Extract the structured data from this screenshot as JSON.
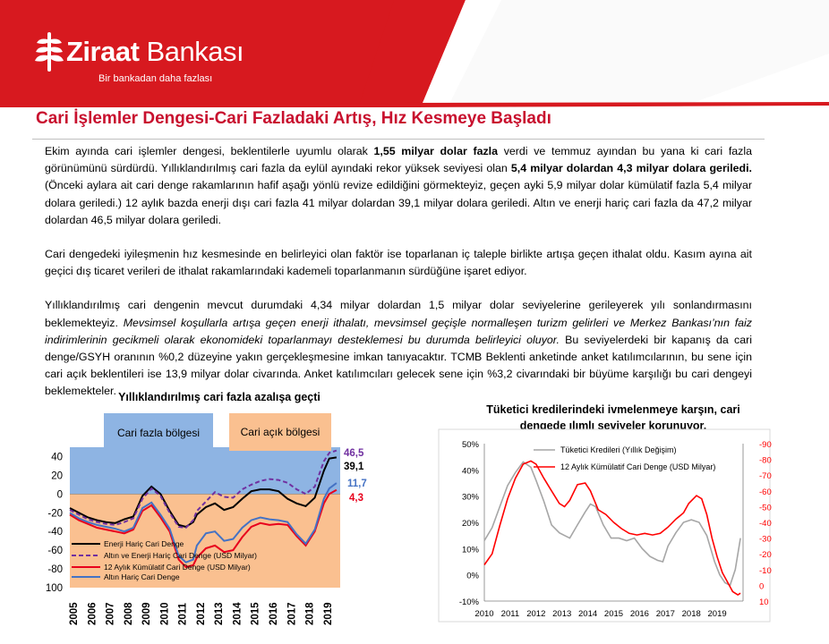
{
  "header": {
    "logo_name": "Ziraat",
    "logo_name2": "Bankası",
    "logo_tagline": "Bir bankadan daha fazlası",
    "accent": "#d7191f"
  },
  "title": "Cari İşlemler Dengesi-Cari Fazladaki Artış, Hız Kesmeye Başladı",
  "paragraphs": {
    "p1a": "Ekim ayında cari işlemler dengesi, beklentilerle uyumlu olarak ",
    "p1b": "1,55 milyar dolar fazla",
    "p1c": " verdi ve temmuz ayından bu yana ki cari fazla görünümünü sürdürdü. Yıllıklandırılmış cari fazla da eylül ayındaki rekor yüksek seviyesi olan ",
    "p1d": "5,4 milyar dolardan 4,3 milyar dolara geriledi.",
    "p1e": " (Önceki aylara ait cari denge rakamlarının hafif aşağı yönlü revize edildiğini görmekteyiz, geçen ayki 5,9 milyar dolar kümülatif fazla 5,4 milyar dolara geriledi.) 12 aylık bazda enerji dışı cari fazla 41 milyar dolardan 39,1 milyar dolara geriledi. Altın ve enerji hariç cari fazla da 47,2  milyar dolardan 46,5 milyar dolara geriledi.",
    "p2": "Cari dengedeki iyileşmenin hız kesmesinde en belirleyici olan faktör ise toparlanan iç taleple birlikte artışa geçen ithalat oldu. Kasım ayına ait geçici dış ticaret verileri de ithalat rakamlarındaki kademeli toparlanmanın sürdüğüne işaret ediyor.",
    "p3a": "Yıllıklandırılmış cari dengenin mevcut durumdaki 4,34 milyar dolardan 1,5 milyar dolar seviyelerine gerileyerek yılı sonlandırmasını beklemekteyiz. ",
    "p3b": "Mevsimsel koşullarla artışa geçen enerji ithalatı, mevsimsel geçişle normalleşen turizm gelirleri ve Merkez Bankası’nın faiz indirimlerinin gecikmeli olarak ekonomideki toparlanmayı desteklemesi bu durumda belirleyici oluyor.",
    "p3c": " Bu seviyelerdeki bir kapanış da cari denge/GSYH oranının %0,2 düzeyine yakın gerçekleşmesine imkan tanıyacaktır. TCMB Beklenti anketinde anket katılımcılarının, bu sene için cari açık beklentileri ise 13,9 milyar dolar civarında. Anket katılımcıları gelecek sene için %3,2 civarındaki bir büyüme karşılığı bu cari dengeyi beklemekteler."
  },
  "chart_data": [
    {
      "type": "line",
      "title": "Yıllıklandırılmış cari fazla azalışa geçti",
      "regions": {
        "surplus": "Cari fazla bölgesi",
        "deficit": "Cari açık bölgesi"
      },
      "x_ticks": [
        "2005",
        "2006",
        "2007",
        "2008",
        "2009",
        "2010",
        "2011",
        "2012",
        "2013",
        "2014",
        "2015",
        "2016",
        "2017",
        "2018",
        "2019"
      ],
      "xlim": [
        2005,
        2019.9
      ],
      "y_ticks": [
        "40",
        "20",
        "0",
        "-20",
        "-40",
        "-60",
        "-80",
        "100"
      ],
      "ylim": [
        -100,
        50
      ],
      "end_labels": [
        "46,5",
        "39,1",
        "11,7",
        "4,3"
      ],
      "series": [
        {
          "name": "Enerji Hariç Cari Denge",
          "color": "#000000",
          "points": [
            [
              2005,
              -15
            ],
            [
              2005.5,
              -20
            ],
            [
              2006,
              -25
            ],
            [
              2006.5,
              -28
            ],
            [
              2007,
              -30
            ],
            [
              2007.5,
              -31
            ],
            [
              2008,
              -27
            ],
            [
              2008.5,
              -24
            ],
            [
              2009,
              -2
            ],
            [
              2009.5,
              8
            ],
            [
              2010,
              0
            ],
            [
              2010.5,
              -18
            ],
            [
              2011,
              -33
            ],
            [
              2011.4,
              -35
            ],
            [
              2011.8,
              -30
            ],
            [
              2012,
              -22
            ],
            [
              2012.5,
              -14
            ],
            [
              2013,
              -10
            ],
            [
              2013.5,
              -17
            ],
            [
              2014,
              -14
            ],
            [
              2014.5,
              -5
            ],
            [
              2015,
              3
            ],
            [
              2015.5,
              5
            ],
            [
              2016,
              5
            ],
            [
              2016.5,
              3
            ],
            [
              2017,
              -5
            ],
            [
              2017.5,
              -10
            ],
            [
              2018,
              -13
            ],
            [
              2018.5,
              -4
            ],
            [
              2019,
              25
            ],
            [
              2019.3,
              38
            ],
            [
              2019.7,
              39.1
            ]
          ]
        },
        {
          "name": "Altın ve Enerji Hariç Cari Denge (USD Milyar)",
          "color": "#7030a0",
          "dashed": true,
          "points": [
            [
              2005,
              -17
            ],
            [
              2005.5,
              -22
            ],
            [
              2006,
              -27
            ],
            [
              2006.5,
              -30
            ],
            [
              2007,
              -32
            ],
            [
              2007.5,
              -33
            ],
            [
              2008,
              -30
            ],
            [
              2008.5,
              -26
            ],
            [
              2009,
              -5
            ],
            [
              2009.5,
              6
            ],
            [
              2010,
              -2
            ],
            [
              2010.5,
              -20
            ],
            [
              2011,
              -35
            ],
            [
              2011.4,
              -36
            ],
            [
              2011.8,
              -28
            ],
            [
              2012,
              -18
            ],
            [
              2012.5,
              -8
            ],
            [
              2013,
              2
            ],
            [
              2013.5,
              -3
            ],
            [
              2014,
              -4
            ],
            [
              2014.5,
              5
            ],
            [
              2015,
              10
            ],
            [
              2015.5,
              14
            ],
            [
              2016,
              16
            ],
            [
              2016.5,
              15
            ],
            [
              2017,
              12
            ],
            [
              2017.5,
              5
            ],
            [
              2018,
              0
            ],
            [
              2018.5,
              8
            ],
            [
              2019,
              35
            ],
            [
              2019.3,
              44
            ],
            [
              2019.7,
              46.5
            ]
          ]
        },
        {
          "name": "12 Aylık Kümülatif Cari Denge (USD Milyar)",
          "color": "#e8001c",
          "points": [
            [
              2005,
              -22
            ],
            [
              2005.5,
              -28
            ],
            [
              2006,
              -32
            ],
            [
              2006.5,
              -36
            ],
            [
              2007,
              -38
            ],
            [
              2007.5,
              -40
            ],
            [
              2008,
              -42
            ],
            [
              2008.5,
              -38
            ],
            [
              2009,
              -18
            ],
            [
              2009.5,
              -12
            ],
            [
              2010,
              -25
            ],
            [
              2010.5,
              -40
            ],
            [
              2011,
              -70
            ],
            [
              2011.4,
              -78
            ],
            [
              2011.8,
              -76
            ],
            [
              2012,
              -68
            ],
            [
              2012.5,
              -58
            ],
            [
              2013,
              -55
            ],
            [
              2013.5,
              -62
            ],
            [
              2014,
              -60
            ],
            [
              2014.5,
              -46
            ],
            [
              2015,
              -35
            ],
            [
              2015.5,
              -31
            ],
            [
              2016,
              -33
            ],
            [
              2016.5,
              -32
            ],
            [
              2017,
              -33
            ],
            [
              2017.5,
              -45
            ],
            [
              2018,
              -55
            ],
            [
              2018.5,
              -40
            ],
            [
              2019,
              -10
            ],
            [
              2019.3,
              0
            ],
            [
              2019.7,
              4.3
            ]
          ]
        },
        {
          "name": "Altın Hariç Cari Denge",
          "color": "#4472c4",
          "points": [
            [
              2005,
              -20
            ],
            [
              2005.5,
              -26
            ],
            [
              2006,
              -30
            ],
            [
              2006.5,
              -33
            ],
            [
              2007,
              -35
            ],
            [
              2007.5,
              -37
            ],
            [
              2008,
              -40
            ],
            [
              2008.5,
              -36
            ],
            [
              2009,
              -15
            ],
            [
              2009.5,
              -9
            ],
            [
              2010,
              -22
            ],
            [
              2010.5,
              -37
            ],
            [
              2011,
              -66
            ],
            [
              2011.4,
              -73
            ],
            [
              2011.8,
              -70
            ],
            [
              2012,
              -55
            ],
            [
              2012.5,
              -42
            ],
            [
              2013,
              -40
            ],
            [
              2013.5,
              -50
            ],
            [
              2014,
              -48
            ],
            [
              2014.5,
              -36
            ],
            [
              2015,
              -28
            ],
            [
              2015.5,
              -25
            ],
            [
              2016,
              -27
            ],
            [
              2016.5,
              -28
            ],
            [
              2017,
              -30
            ],
            [
              2017.5,
              -43
            ],
            [
              2018,
              -53
            ],
            [
              2018.5,
              -38
            ],
            [
              2019,
              -5
            ],
            [
              2019.3,
              6
            ],
            [
              2019.7,
              11.7
            ]
          ]
        }
      ]
    },
    {
      "type": "line",
      "title": "Tüketici kredilerindeki ivmelenmeye karşın, cari dengede ılımlı seviyeler korunuyor.",
      "x_ticks": [
        "2010",
        "2011",
        "2012",
        "2013",
        "2014",
        "2015",
        "2016",
        "2017",
        "2018",
        "2019"
      ],
      "xlim": [
        2010,
        2020
      ],
      "y_left_ticks": [
        "50%",
        "40%",
        "30%",
        "20%",
        "10%",
        "0%",
        "-10%"
      ],
      "ylim_left": [
        -10,
        50
      ],
      "y_right_ticks": [
        "-90",
        "-80",
        "-70",
        "-60",
        "-50",
        "-40",
        "-30",
        "-20",
        "-10",
        "0",
        "10"
      ],
      "ylim_right": [
        10,
        -90
      ],
      "series": [
        {
          "name": "Tüketici Kredileri (Yıllık Değişim)",
          "color": "#a6a6a6",
          "axis": "left",
          "points": [
            [
              2010,
              13
            ],
            [
              2010.3,
              18
            ],
            [
              2010.6,
              26
            ],
            [
              2010.9,
              34
            ],
            [
              2011.2,
              39
            ],
            [
              2011.5,
              43
            ],
            [
              2011.8,
              41
            ],
            [
              2012,
              36
            ],
            [
              2012.3,
              28
            ],
            [
              2012.6,
              19
            ],
            [
              2012.9,
              16
            ],
            [
              2013.1,
              15
            ],
            [
              2013.3,
              14
            ],
            [
              2013.6,
              19
            ],
            [
              2013.9,
              24
            ],
            [
              2014.1,
              27
            ],
            [
              2014.3,
              26
            ],
            [
              2014.6,
              19
            ],
            [
              2014.9,
              14
            ],
            [
              2015.2,
              14
            ],
            [
              2015.5,
              13
            ],
            [
              2015.8,
              14
            ],
            [
              2016.1,
              10
            ],
            [
              2016.4,
              7
            ],
            [
              2016.7,
              5.5
            ],
            [
              2016.9,
              5
            ],
            [
              2017.1,
              11
            ],
            [
              2017.4,
              16
            ],
            [
              2017.7,
              20
            ],
            [
              2018,
              21
            ],
            [
              2018.3,
              20
            ],
            [
              2018.6,
              15
            ],
            [
              2018.9,
              5
            ],
            [
              2019.1,
              0
            ],
            [
              2019.3,
              -3
            ],
            [
              2019.5,
              -4
            ],
            [
              2019.7,
              2
            ],
            [
              2019.9,
              14
            ]
          ]
        },
        {
          "name": "12 Aylık Kümülatif Cari Denge (USD Milyar)",
          "color": "#ff0000",
          "axis": "right",
          "points": [
            [
              2010,
              -13
            ],
            [
              2010.3,
              -20
            ],
            [
              2010.6,
              -38
            ],
            [
              2010.9,
              -55
            ],
            [
              2011.2,
              -68
            ],
            [
              2011.5,
              -77
            ],
            [
              2011.8,
              -79
            ],
            [
              2012,
              -77
            ],
            [
              2012.3,
              -68
            ],
            [
              2012.6,
              -60
            ],
            [
              2012.9,
              -52
            ],
            [
              2013.1,
              -50
            ],
            [
              2013.3,
              -54
            ],
            [
              2013.6,
              -64
            ],
            [
              2013.9,
              -65
            ],
            [
              2014.1,
              -60
            ],
            [
              2014.4,
              -48
            ],
            [
              2014.7,
              -45
            ],
            [
              2015,
              -40
            ],
            [
              2015.3,
              -36
            ],
            [
              2015.6,
              -33
            ],
            [
              2015.9,
              -32
            ],
            [
              2016.2,
              -33
            ],
            [
              2016.5,
              -32
            ],
            [
              2016.8,
              -33
            ],
            [
              2017.1,
              -37
            ],
            [
              2017.4,
              -42
            ],
            [
              2017.7,
              -46
            ],
            [
              2017.9,
              -52
            ],
            [
              2018.2,
              -57
            ],
            [
              2018.4,
              -55
            ],
            [
              2018.6,
              -45
            ],
            [
              2018.8,
              -30
            ],
            [
              2019,
              -18
            ],
            [
              2019.2,
              -8
            ],
            [
              2019.4,
              -2
            ],
            [
              2019.6,
              4
            ],
            [
              2019.8,
              6
            ],
            [
              2019.9,
              5
            ]
          ]
        }
      ]
    }
  ]
}
